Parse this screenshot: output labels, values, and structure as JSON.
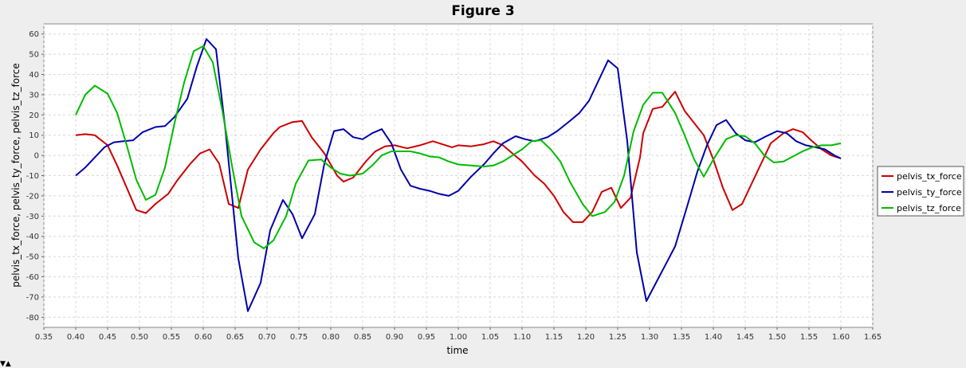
{
  "window_title": "Figure 3",
  "corner_icon": "resize-icon",
  "chart_data": {
    "type": "line",
    "title": "Figure 3",
    "xlabel": "time",
    "ylabel": "pelvis_tx_force, pelvis_ty_force, pelvis_tz_force",
    "xlim": [
      0.35,
      1.65
    ],
    "ylim": [
      -85,
      65
    ],
    "xticks": [
      0.35,
      0.4,
      0.45,
      0.5,
      0.55,
      0.6,
      0.65,
      0.7,
      0.75,
      0.8,
      0.85,
      0.9,
      0.95,
      1.0,
      1.05,
      1.1,
      1.15,
      1.2,
      1.25,
      1.3,
      1.35,
      1.4,
      1.45,
      1.5,
      1.55,
      1.6,
      1.65
    ],
    "xtick_labels": [
      "0.35",
      "0.40",
      "0.45",
      "0.50",
      "0.55",
      "0.60",
      "0.65",
      "0.70",
      "0.75",
      "0.80",
      "0.85",
      "0.90",
      "0.95",
      "1.00",
      "1.05",
      "1.10",
      "1.15",
      "1.20",
      "1.25",
      "1.30",
      "1.35",
      "1.40",
      "1.45",
      "1.50",
      "1.55",
      "1.60",
      "1.65"
    ],
    "yticks": [
      60,
      50,
      40,
      30,
      20,
      10,
      0,
      -10,
      -20,
      -30,
      -40,
      -50,
      -60,
      -70,
      -80
    ],
    "ytick_labels": [
      "60",
      "50",
      "40",
      "30",
      "20",
      "10",
      "0",
      "-10",
      "-20",
      "-30",
      "-40",
      "-50",
      "-60",
      "-70",
      "-80"
    ],
    "grid": true,
    "legend_position": "right",
    "series": [
      {
        "name": "pelvis_tx_force",
        "color": "#cc0000",
        "points": [
          [
            0.4,
            10
          ],
          [
            0.415,
            10.5
          ],
          [
            0.43,
            10
          ],
          [
            0.45,
            5
          ],
          [
            0.465,
            -5
          ],
          [
            0.48,
            -16
          ],
          [
            0.495,
            -27
          ],
          [
            0.51,
            -28.5
          ],
          [
            0.525,
            -24
          ],
          [
            0.545,
            -19
          ],
          [
            0.56,
            -12
          ],
          [
            0.58,
            -4
          ],
          [
            0.595,
            1
          ],
          [
            0.61,
            3
          ],
          [
            0.625,
            -4
          ],
          [
            0.64,
            -24
          ],
          [
            0.655,
            -26
          ],
          [
            0.67,
            -7
          ],
          [
            0.69,
            3
          ],
          [
            0.71,
            11
          ],
          [
            0.72,
            14
          ],
          [
            0.74,
            16.5
          ],
          [
            0.755,
            17
          ],
          [
            0.77,
            9
          ],
          [
            0.79,
            1
          ],
          [
            0.81,
            -10
          ],
          [
            0.82,
            -13
          ],
          [
            0.835,
            -11
          ],
          [
            0.855,
            -3
          ],
          [
            0.87,
            2
          ],
          [
            0.885,
            4.5
          ],
          [
            0.9,
            5
          ],
          [
            0.92,
            3.5
          ],
          [
            0.94,
            5
          ],
          [
            0.96,
            7
          ],
          [
            0.975,
            5.5
          ],
          [
            0.99,
            4
          ],
          [
            1.0,
            5
          ],
          [
            1.02,
            4.5
          ],
          [
            1.04,
            5.5
          ],
          [
            1.055,
            7
          ],
          [
            1.07,
            5
          ],
          [
            1.085,
            1
          ],
          [
            1.1,
            -3
          ],
          [
            1.12,
            -10
          ],
          [
            1.135,
            -14
          ],
          [
            1.15,
            -20
          ],
          [
            1.165,
            -28
          ],
          [
            1.18,
            -33
          ],
          [
            1.195,
            -33
          ],
          [
            1.21,
            -28
          ],
          [
            1.225,
            -18
          ],
          [
            1.24,
            -16
          ],
          [
            1.255,
            -26
          ],
          [
            1.27,
            -21
          ],
          [
            1.285,
            -1
          ],
          [
            1.29,
            11
          ],
          [
            1.305,
            23
          ],
          [
            1.32,
            24
          ],
          [
            1.34,
            31.5
          ],
          [
            1.355,
            22
          ],
          [
            1.37,
            16
          ],
          [
            1.385,
            10
          ],
          [
            1.4,
            -2
          ],
          [
            1.415,
            -16
          ],
          [
            1.43,
            -27
          ],
          [
            1.445,
            -24
          ],
          [
            1.46,
            -14
          ],
          [
            1.475,
            -4
          ],
          [
            1.49,
            6
          ],
          [
            1.51,
            11
          ],
          [
            1.525,
            13
          ],
          [
            1.54,
            11.5
          ],
          [
            1.555,
            7
          ],
          [
            1.57,
            3
          ],
          [
            1.585,
            0
          ],
          [
            1.6,
            -1.5
          ]
        ]
      },
      {
        "name": "pelvis_ty_force",
        "color": "#0000aa",
        "points": [
          [
            0.4,
            -10
          ],
          [
            0.415,
            -6
          ],
          [
            0.43,
            -1
          ],
          [
            0.445,
            4
          ],
          [
            0.46,
            6.5
          ],
          [
            0.475,
            7
          ],
          [
            0.49,
            7.5
          ],
          [
            0.505,
            11.5
          ],
          [
            0.525,
            14
          ],
          [
            0.54,
            14.5
          ],
          [
            0.555,
            19
          ],
          [
            0.575,
            28
          ],
          [
            0.59,
            44
          ],
          [
            0.605,
            57.5
          ],
          [
            0.62,
            52.5
          ],
          [
            0.635,
            12
          ],
          [
            0.655,
            -51
          ],
          [
            0.67,
            -77
          ],
          [
            0.69,
            -63
          ],
          [
            0.705,
            -37
          ],
          [
            0.725,
            -22
          ],
          [
            0.74,
            -29
          ],
          [
            0.755,
            -41
          ],
          [
            0.775,
            -29
          ],
          [
            0.79,
            -4
          ],
          [
            0.805,
            12
          ],
          [
            0.82,
            13
          ],
          [
            0.835,
            9
          ],
          [
            0.85,
            8
          ],
          [
            0.865,
            11
          ],
          [
            0.88,
            13
          ],
          [
            0.895,
            6
          ],
          [
            0.91,
            -7
          ],
          [
            0.925,
            -15
          ],
          [
            0.94,
            -16.5
          ],
          [
            0.955,
            -17.5
          ],
          [
            0.97,
            -19
          ],
          [
            0.985,
            -20
          ],
          [
            1.0,
            -17.5
          ],
          [
            1.02,
            -10.5
          ],
          [
            1.04,
            -4.5
          ],
          [
            1.055,
            1
          ],
          [
            1.07,
            6
          ],
          [
            1.09,
            9.5
          ],
          [
            1.105,
            8
          ],
          [
            1.12,
            7
          ],
          [
            1.14,
            9
          ],
          [
            1.155,
            12
          ],
          [
            1.175,
            17
          ],
          [
            1.19,
            21
          ],
          [
            1.205,
            27
          ],
          [
            1.22,
            37
          ],
          [
            1.235,
            47
          ],
          [
            1.25,
            43
          ],
          [
            1.265,
            7
          ],
          [
            1.28,
            -48
          ],
          [
            1.295,
            -72
          ],
          [
            1.31,
            -63
          ],
          [
            1.325,
            -54
          ],
          [
            1.34,
            -45
          ],
          [
            1.36,
            -24
          ],
          [
            1.375,
            -8
          ],
          [
            1.39,
            5
          ],
          [
            1.405,
            15
          ],
          [
            1.42,
            17.5
          ],
          [
            1.435,
            11
          ],
          [
            1.45,
            7.5
          ],
          [
            1.465,
            6.5
          ],
          [
            1.48,
            9
          ],
          [
            1.5,
            12
          ],
          [
            1.515,
            11
          ],
          [
            1.53,
            7
          ],
          [
            1.545,
            5
          ],
          [
            1.56,
            4
          ],
          [
            1.575,
            3
          ],
          [
            1.59,
            0
          ],
          [
            1.6,
            -1.5
          ]
        ]
      },
      {
        "name": "pelvis_tz_force",
        "color": "#00bb00",
        "points": [
          [
            0.4,
            20
          ],
          [
            0.415,
            30
          ],
          [
            0.43,
            34.5
          ],
          [
            0.45,
            30.5
          ],
          [
            0.465,
            21
          ],
          [
            0.48,
            5
          ],
          [
            0.495,
            -12
          ],
          [
            0.51,
            -22
          ],
          [
            0.525,
            -19.5
          ],
          [
            0.54,
            -6
          ],
          [
            0.555,
            16
          ],
          [
            0.57,
            36
          ],
          [
            0.585,
            51.5
          ],
          [
            0.6,
            54
          ],
          [
            0.615,
            46
          ],
          [
            0.63,
            22
          ],
          [
            0.645,
            -5
          ],
          [
            0.66,
            -30
          ],
          [
            0.68,
            -43
          ],
          [
            0.695,
            -46
          ],
          [
            0.71,
            -42
          ],
          [
            0.73,
            -30
          ],
          [
            0.745,
            -14
          ],
          [
            0.765,
            -2.5
          ],
          [
            0.785,
            -2
          ],
          [
            0.8,
            -6
          ],
          [
            0.815,
            -9
          ],
          [
            0.83,
            -10
          ],
          [
            0.85,
            -9
          ],
          [
            0.865,
            -5
          ],
          [
            0.88,
            0
          ],
          [
            0.895,
            2
          ],
          [
            0.91,
            2
          ],
          [
            0.925,
            2
          ],
          [
            0.94,
            1
          ],
          [
            0.955,
            -0.5
          ],
          [
            0.97,
            -1
          ],
          [
            0.985,
            -3
          ],
          [
            1.0,
            -4.5
          ],
          [
            1.02,
            -5
          ],
          [
            1.04,
            -5.5
          ],
          [
            1.055,
            -5
          ],
          [
            1.07,
            -3
          ],
          [
            1.085,
            0
          ],
          [
            1.1,
            3
          ],
          [
            1.115,
            7
          ],
          [
            1.13,
            7.5
          ],
          [
            1.145,
            3
          ],
          [
            1.16,
            -3
          ],
          [
            1.175,
            -13
          ],
          [
            1.195,
            -24
          ],
          [
            1.21,
            -30
          ],
          [
            1.23,
            -28
          ],
          [
            1.245,
            -23
          ],
          [
            1.26,
            -10
          ],
          [
            1.275,
            12
          ],
          [
            1.29,
            25
          ],
          [
            1.305,
            31
          ],
          [
            1.32,
            31
          ],
          [
            1.34,
            21
          ],
          [
            1.355,
            10
          ],
          [
            1.37,
            -2
          ],
          [
            1.385,
            -10.5
          ],
          [
            1.4,
            -2
          ],
          [
            1.42,
            8
          ],
          [
            1.435,
            10
          ],
          [
            1.45,
            9.5
          ],
          [
            1.465,
            6
          ],
          [
            1.48,
            0
          ],
          [
            1.495,
            -3.5
          ],
          [
            1.51,
            -3
          ],
          [
            1.525,
            -0.5
          ],
          [
            1.54,
            2
          ],
          [
            1.555,
            4
          ],
          [
            1.57,
            5
          ],
          [
            1.585,
            5
          ],
          [
            1.6,
            6
          ]
        ]
      }
    ]
  }
}
